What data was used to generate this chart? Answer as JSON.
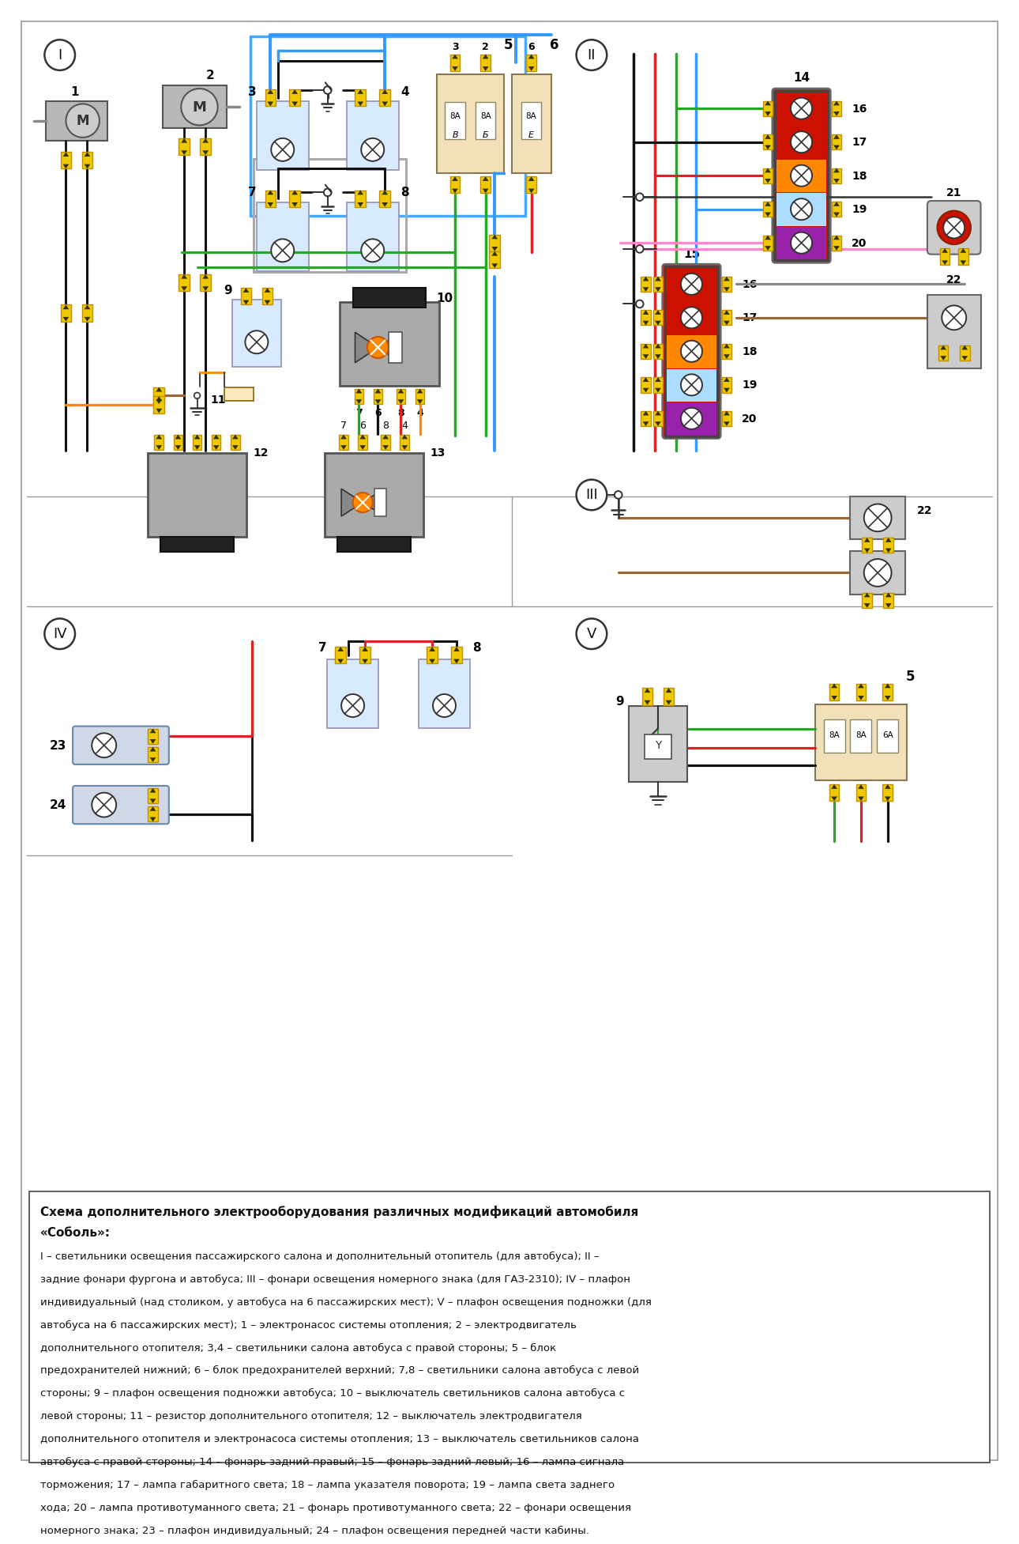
{
  "bg_color": "#ffffff",
  "title_line1": "Схема дополнительного электрооборудования различных модификаций автомобиля",
  "title_line2": "«Соболь»:",
  "desc_text": "I – светильники освещения пассажирского салона и дополнительный отопитель (для автобуса); II – задние фонари фургона и автобуса; III – фонари освещения номерного знака (для ГАЗ-2310); IV – плафон индивидуальный (над столиком, у автобуса на 6 пассажирских мест); V – плафон освещения подножки (для автобуса на 6 пассажирских мест); 1 – электронасос системы отопления; 2 – электродвигатель дополнительного отопителя; 3,4 – светильники салона автобуса с правой стороны; 5 – блок предохранителей нижний; 6 – блок предохранителей верхний; 7,8 – светильники салона автобуса с левой стороны; 9 – плафон освещения подножки автобуса; 10 – выключатель светильников салона автобуса с левой стороны; 11 – резистор дополнительного отопителя; 12 – выключатель электродвигателя дополнительного отопителя и электронасоса системы отопления; 13 – выключатель светильников салона автобуса с правой стороны; 14 – фонарь задний правый; 15 – фонарь задний левый; 16 – лампа сигнала торможения; 17 – лампа габаритного света; 18 – лампа указателя поворота; 19 – лампа света заднего хода; 20 – лампа противотуманного света; 21 – фонарь противотуманного света; 22 – фонари освещения номерного знака; 23 – плафон индивидуальный; 24 – плафон освещения передней части кабины.",
  "colors": {
    "green": "#22aa22",
    "red": "#dd2222",
    "blue": "#3399ff",
    "cyan": "#00ccff",
    "black": "#111111",
    "gray": "#888888",
    "orange": "#ff8800",
    "brown": "#996633",
    "pink": "#ff88cc",
    "yellow": "#f0d000",
    "light_blue": "#99ccff",
    "purple": "#9944aa",
    "dark_green": "#006600"
  }
}
